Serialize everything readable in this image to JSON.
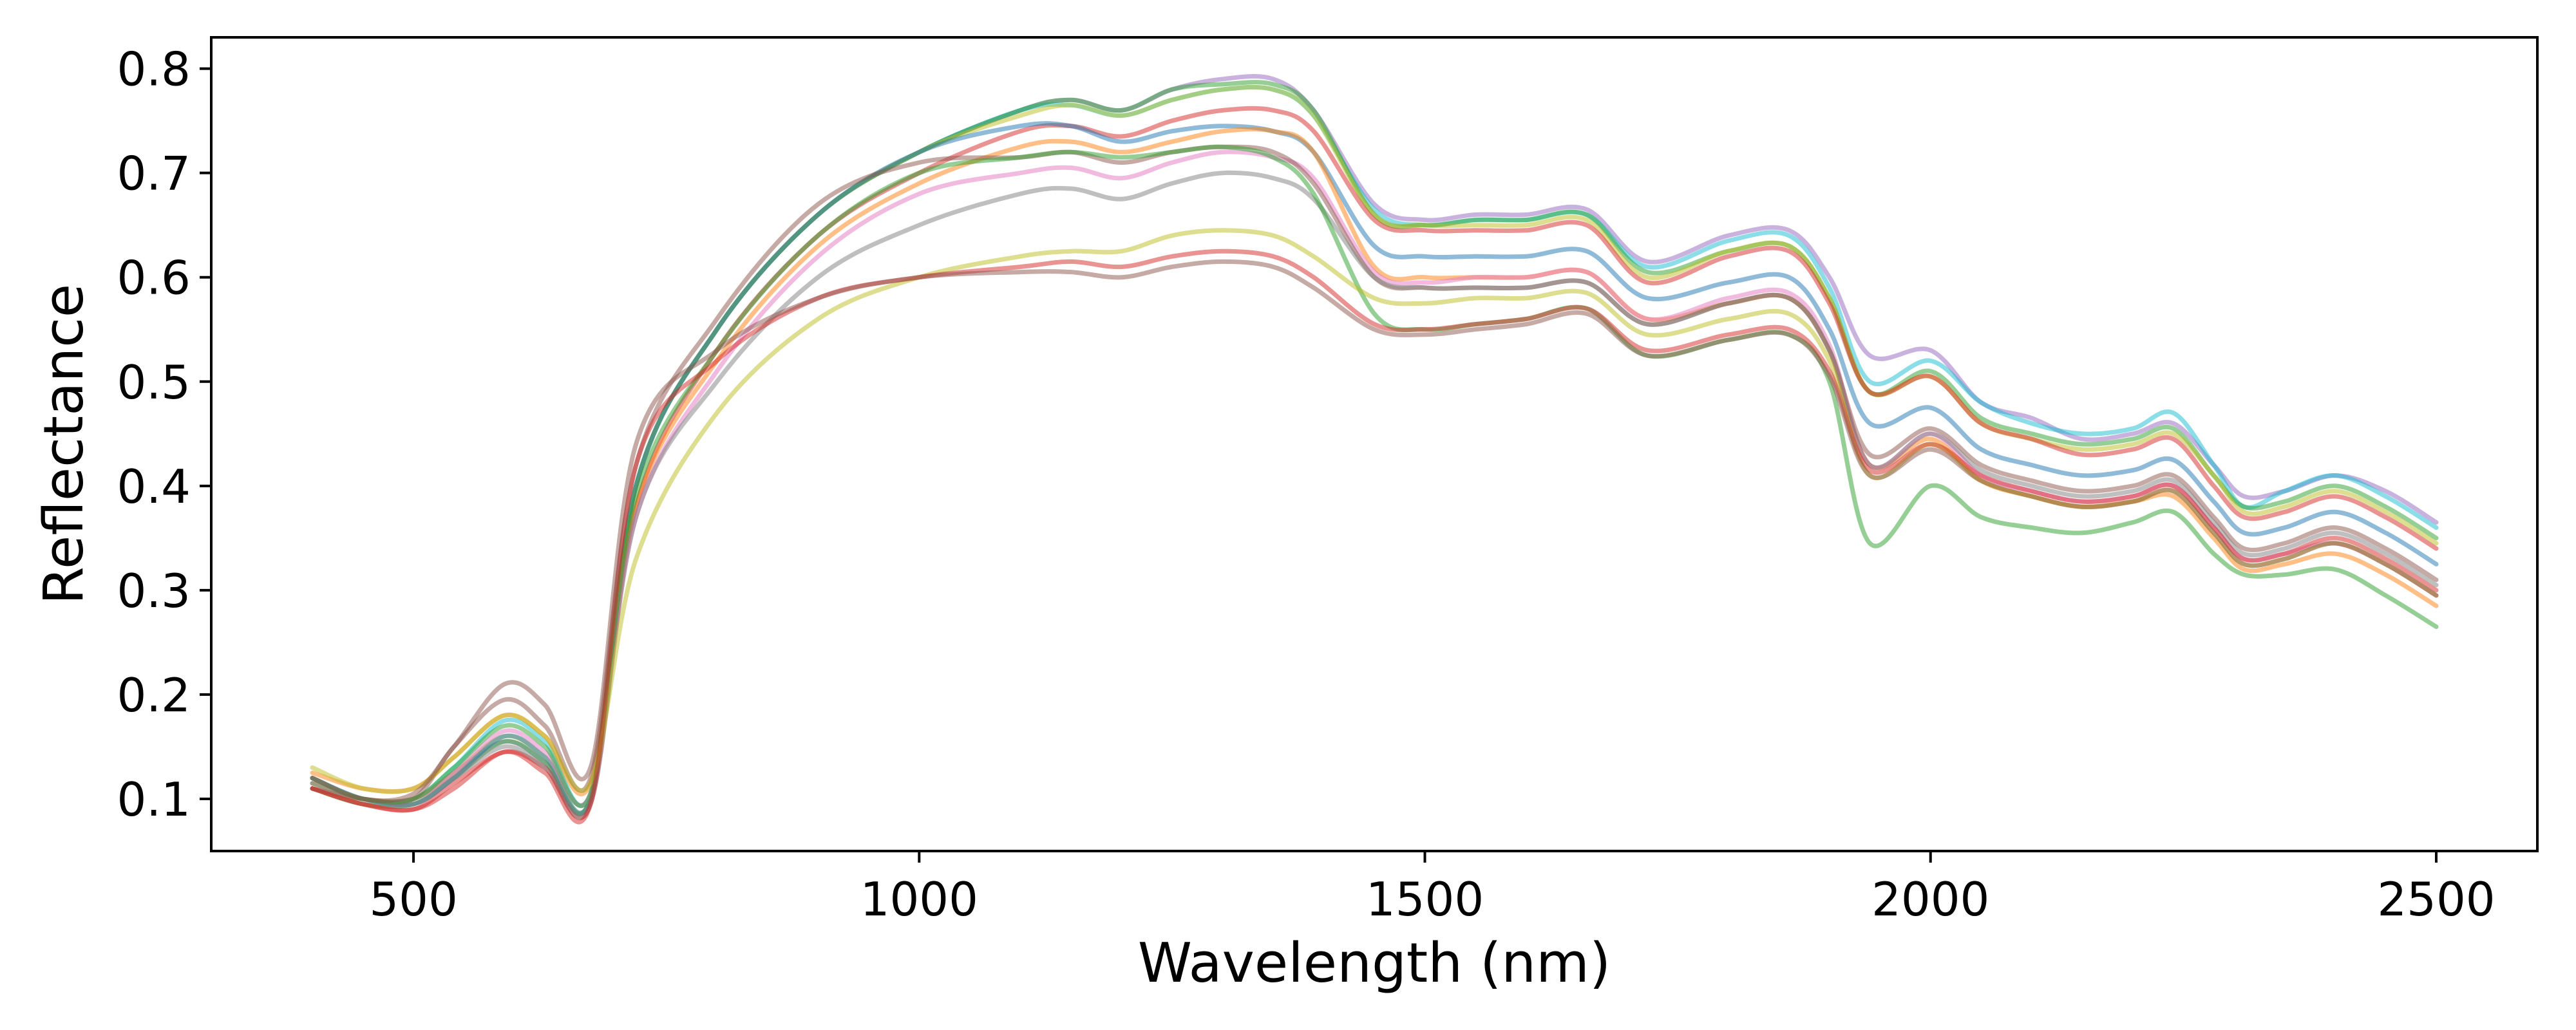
{
  "chart_data": {
    "type": "line",
    "title": "",
    "xlabel": "Wavelength (nm)",
    "ylabel": "Reflectance",
    "xlim": [
      300,
      2600
    ],
    "ylim": [
      0.05,
      0.83
    ],
    "xticks": [
      500,
      1000,
      1500,
      2000,
      2500
    ],
    "yticks": [
      0.1,
      0.2,
      0.3,
      0.4,
      0.5,
      0.6,
      0.7,
      0.8
    ],
    "grid": false,
    "legend": "none",
    "x": [
      400,
      450,
      500,
      540,
      590,
      630,
      675,
      720,
      800,
      900,
      1000,
      1100,
      1150,
      1200,
      1250,
      1300,
      1350,
      1390,
      1450,
      1500,
      1550,
      1600,
      1660,
      1720,
      1800,
      1860,
      1900,
      1940,
      2000,
      2050,
      2100,
      2150,
      2200,
      2240,
      2280,
      2310,
      2350,
      2400,
      2450,
      2500
    ],
    "series": [
      {
        "color": "#9467bd",
        "values": [
          0.115,
          0.1,
          0.1,
          0.125,
          0.155,
          0.135,
          0.1,
          0.4,
          0.55,
          0.66,
          0.72,
          0.76,
          0.77,
          0.76,
          0.78,
          0.79,
          0.79,
          0.76,
          0.67,
          0.655,
          0.66,
          0.66,
          0.665,
          0.615,
          0.64,
          0.645,
          0.6,
          0.525,
          0.53,
          0.48,
          0.465,
          0.445,
          0.45,
          0.46,
          0.42,
          0.39,
          0.395,
          0.41,
          0.395,
          0.365
        ]
      },
      {
        "color": "#17becf",
        "values": [
          0.12,
          0.1,
          0.1,
          0.13,
          0.175,
          0.155,
          0.105,
          0.4,
          0.55,
          0.66,
          0.72,
          0.76,
          0.765,
          0.755,
          0.77,
          0.78,
          0.78,
          0.755,
          0.665,
          0.65,
          0.655,
          0.655,
          0.66,
          0.61,
          0.635,
          0.64,
          0.59,
          0.5,
          0.52,
          0.48,
          0.46,
          0.45,
          0.455,
          0.47,
          0.42,
          0.38,
          0.395,
          0.41,
          0.39,
          0.36
        ]
      },
      {
        "color": "#2ca02c",
        "values": [
          0.11,
          0.095,
          0.095,
          0.12,
          0.155,
          0.135,
          0.1,
          0.4,
          0.55,
          0.66,
          0.72,
          0.76,
          0.77,
          0.76,
          0.78,
          0.785,
          0.785,
          0.76,
          0.66,
          0.65,
          0.655,
          0.655,
          0.66,
          0.605,
          0.625,
          0.63,
          0.58,
          0.49,
          0.51,
          0.465,
          0.45,
          0.44,
          0.445,
          0.455,
          0.41,
          0.38,
          0.385,
          0.4,
          0.38,
          0.35
        ]
      },
      {
        "color": "#bcbd22",
        "values": [
          0.115,
          0.1,
          0.1,
          0.125,
          0.16,
          0.14,
          0.1,
          0.4,
          0.55,
          0.66,
          0.72,
          0.755,
          0.765,
          0.755,
          0.77,
          0.78,
          0.78,
          0.755,
          0.66,
          0.65,
          0.65,
          0.65,
          0.655,
          0.6,
          0.625,
          0.63,
          0.58,
          0.49,
          0.505,
          0.46,
          0.445,
          0.435,
          0.44,
          0.45,
          0.41,
          0.375,
          0.38,
          0.395,
          0.375,
          0.345
        ]
      },
      {
        "color": "#d62728",
        "values": [
          0.11,
          0.095,
          0.09,
          0.115,
          0.145,
          0.13,
          0.095,
          0.38,
          0.53,
          0.64,
          0.7,
          0.74,
          0.745,
          0.735,
          0.75,
          0.76,
          0.76,
          0.74,
          0.655,
          0.645,
          0.645,
          0.645,
          0.65,
          0.595,
          0.62,
          0.625,
          0.575,
          0.49,
          0.505,
          0.46,
          0.445,
          0.43,
          0.435,
          0.445,
          0.4,
          0.37,
          0.375,
          0.39,
          0.37,
          0.34
        ]
      },
      {
        "color": "#1f77b4",
        "values": [
          0.12,
          0.1,
          0.095,
          0.12,
          0.16,
          0.14,
          0.1,
          0.4,
          0.55,
          0.66,
          0.72,
          0.745,
          0.745,
          0.73,
          0.74,
          0.745,
          0.74,
          0.72,
          0.63,
          0.62,
          0.62,
          0.62,
          0.625,
          0.58,
          0.595,
          0.6,
          0.55,
          0.46,
          0.475,
          0.435,
          0.42,
          0.41,
          0.415,
          0.425,
          0.385,
          0.355,
          0.36,
          0.375,
          0.355,
          0.325
        ]
      },
      {
        "color": "#ff7f0e",
        "values": [
          0.125,
          0.11,
          0.11,
          0.14,
          0.18,
          0.16,
          0.115,
          0.38,
          0.52,
          0.63,
          0.69,
          0.725,
          0.73,
          0.72,
          0.73,
          0.74,
          0.74,
          0.72,
          0.61,
          0.6,
          0.6,
          0.6,
          0.605,
          0.56,
          0.575,
          0.58,
          0.53,
          0.42,
          0.445,
          0.405,
          0.39,
          0.38,
          0.385,
          0.39,
          0.35,
          0.32,
          0.325,
          0.335,
          0.315,
          0.285
        ]
      },
      {
        "color": "#e377c2",
        "values": [
          0.12,
          0.1,
          0.1,
          0.125,
          0.165,
          0.145,
          0.105,
          0.37,
          0.51,
          0.62,
          0.68,
          0.7,
          0.705,
          0.695,
          0.71,
          0.72,
          0.715,
          0.695,
          0.605,
          0.595,
          0.6,
          0.6,
          0.605,
          0.56,
          0.58,
          0.585,
          0.535,
          0.42,
          0.45,
          0.41,
          0.395,
          0.385,
          0.39,
          0.4,
          0.36,
          0.33,
          0.335,
          0.345,
          0.325,
          0.295
        ]
      },
      {
        "color": "#8c564b",
        "values": [
          0.11,
          0.1,
          0.1,
          0.15,
          0.195,
          0.17,
          0.12,
          0.42,
          0.56,
          0.67,
          0.71,
          0.715,
          0.72,
          0.71,
          0.72,
          0.725,
          0.72,
          0.69,
          0.6,
          0.59,
          0.59,
          0.59,
          0.595,
          0.555,
          0.575,
          0.58,
          0.53,
          0.43,
          0.455,
          0.42,
          0.405,
          0.395,
          0.4,
          0.41,
          0.37,
          0.34,
          0.345,
          0.36,
          0.34,
          0.31
        ]
      },
      {
        "color": "#7f7f7f",
        "values": [
          0.115,
          0.1,
          0.095,
          0.12,
          0.15,
          0.13,
          0.095,
          0.37,
          0.5,
          0.6,
          0.65,
          0.68,
          0.685,
          0.675,
          0.69,
          0.7,
          0.695,
          0.675,
          0.6,
          0.59,
          0.59,
          0.59,
          0.595,
          0.555,
          0.575,
          0.58,
          0.53,
          0.42,
          0.45,
          0.415,
          0.4,
          0.39,
          0.395,
          0.405,
          0.365,
          0.335,
          0.34,
          0.355,
          0.335,
          0.305
        ]
      },
      {
        "color": "#2ca02c",
        "values": [
          0.12,
          0.1,
          0.1,
          0.13,
          0.17,
          0.15,
          0.105,
          0.39,
          0.53,
          0.64,
          0.7,
          0.715,
          0.72,
          0.715,
          0.72,
          0.725,
          0.715,
          0.68,
          0.565,
          0.55,
          0.555,
          0.56,
          0.57,
          0.525,
          0.54,
          0.545,
          0.5,
          0.345,
          0.4,
          0.37,
          0.36,
          0.355,
          0.365,
          0.375,
          0.335,
          0.315,
          0.315,
          0.32,
          0.295,
          0.265
        ]
      },
      {
        "color": "#bcbd22",
        "values": [
          0.13,
          0.11,
          0.11,
          0.14,
          0.18,
          0.16,
          0.115,
          0.33,
          0.47,
          0.56,
          0.6,
          0.62,
          0.625,
          0.625,
          0.64,
          0.645,
          0.64,
          0.62,
          0.58,
          0.575,
          0.58,
          0.58,
          0.585,
          0.545,
          0.56,
          0.565,
          0.52,
          0.41,
          0.44,
          0.405,
          0.39,
          0.38,
          0.385,
          0.395,
          0.355,
          0.325,
          0.33,
          0.345,
          0.325,
          0.295
        ]
      },
      {
        "color": "#d62728",
        "values": [
          0.11,
          0.095,
          0.09,
          0.11,
          0.145,
          0.125,
          0.095,
          0.42,
          0.52,
          0.58,
          0.6,
          0.61,
          0.615,
          0.61,
          0.62,
          0.625,
          0.62,
          0.6,
          0.555,
          0.55,
          0.555,
          0.56,
          0.57,
          0.53,
          0.545,
          0.55,
          0.51,
          0.415,
          0.44,
          0.41,
          0.395,
          0.385,
          0.39,
          0.4,
          0.36,
          0.33,
          0.335,
          0.35,
          0.33,
          0.3
        ]
      },
      {
        "color": "#8c564b",
        "values": [
          0.12,
          0.1,
          0.105,
          0.15,
          0.21,
          0.19,
          0.13,
          0.44,
          0.53,
          0.58,
          0.6,
          0.605,
          0.605,
          0.6,
          0.61,
          0.615,
          0.61,
          0.59,
          0.55,
          0.545,
          0.55,
          0.555,
          0.565,
          0.525,
          0.54,
          0.545,
          0.505,
          0.41,
          0.435,
          0.405,
          0.39,
          0.38,
          0.385,
          0.395,
          0.355,
          0.325,
          0.33,
          0.345,
          0.325,
          0.295
        ]
      }
    ]
  }
}
